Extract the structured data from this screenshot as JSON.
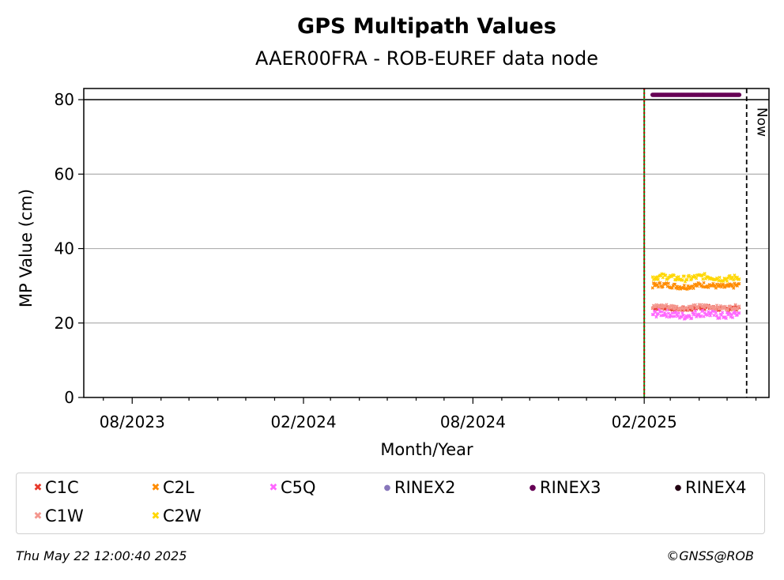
{
  "chart_data": {
    "type": "scatter",
    "title": "GPS Multipath Values",
    "subtitle": "AAER00FRA - ROB-EUREF data node",
    "xlabel": "Month/Year",
    "ylabel": "MP Value (cm)",
    "ylim": [
      0,
      83
    ],
    "xlim": [
      "2023-06-10",
      "2025-06-15"
    ],
    "x_ticks": [
      "08/2023",
      "02/2024",
      "08/2024",
      "02/2025"
    ],
    "y_ticks": [
      0,
      20,
      40,
      60,
      80
    ],
    "grid": "horizontal",
    "threshold_line": 80,
    "vertical_markers": [
      {
        "date": "2025-02-01",
        "style": "green-red-dotted"
      },
      {
        "date": "2025-05-22",
        "label": "Now",
        "style": "black-dashed"
      }
    ],
    "x_range": [
      "2025-02-10",
      "2025-05-14"
    ],
    "series": [
      {
        "name": "C1C",
        "color": "#e8392a",
        "marker": "x",
        "mean": 24,
        "spread": 0.6
      },
      {
        "name": "C2L",
        "color": "#ff8c00",
        "marker": "x",
        "mean": 30,
        "spread": 0.7
      },
      {
        "name": "C5Q",
        "color": "#ff66ff",
        "marker": "x",
        "mean": 22.3,
        "spread": 1.0
      },
      {
        "name": "RINEX2",
        "color": "#8877bb",
        "marker": "dot",
        "mean": null,
        "spread": 0
      },
      {
        "name": "RINEX3",
        "color": "#660055",
        "marker": "dot",
        "mean": 81.3,
        "spread": 0
      },
      {
        "name": "RINEX4",
        "color": "#220011",
        "marker": "dot",
        "mean": null,
        "spread": 0
      },
      {
        "name": "C1W",
        "color": "#f4978e",
        "marker": "x",
        "mean": 24.3,
        "spread": 0.6
      },
      {
        "name": "C2W",
        "color": "#ffd700",
        "marker": "x",
        "mean": 32.2,
        "spread": 0.8
      }
    ]
  },
  "footer": {
    "timestamp": "Thu May 22 12:00:40 2025",
    "copyright": "©GNSS@ROB"
  }
}
